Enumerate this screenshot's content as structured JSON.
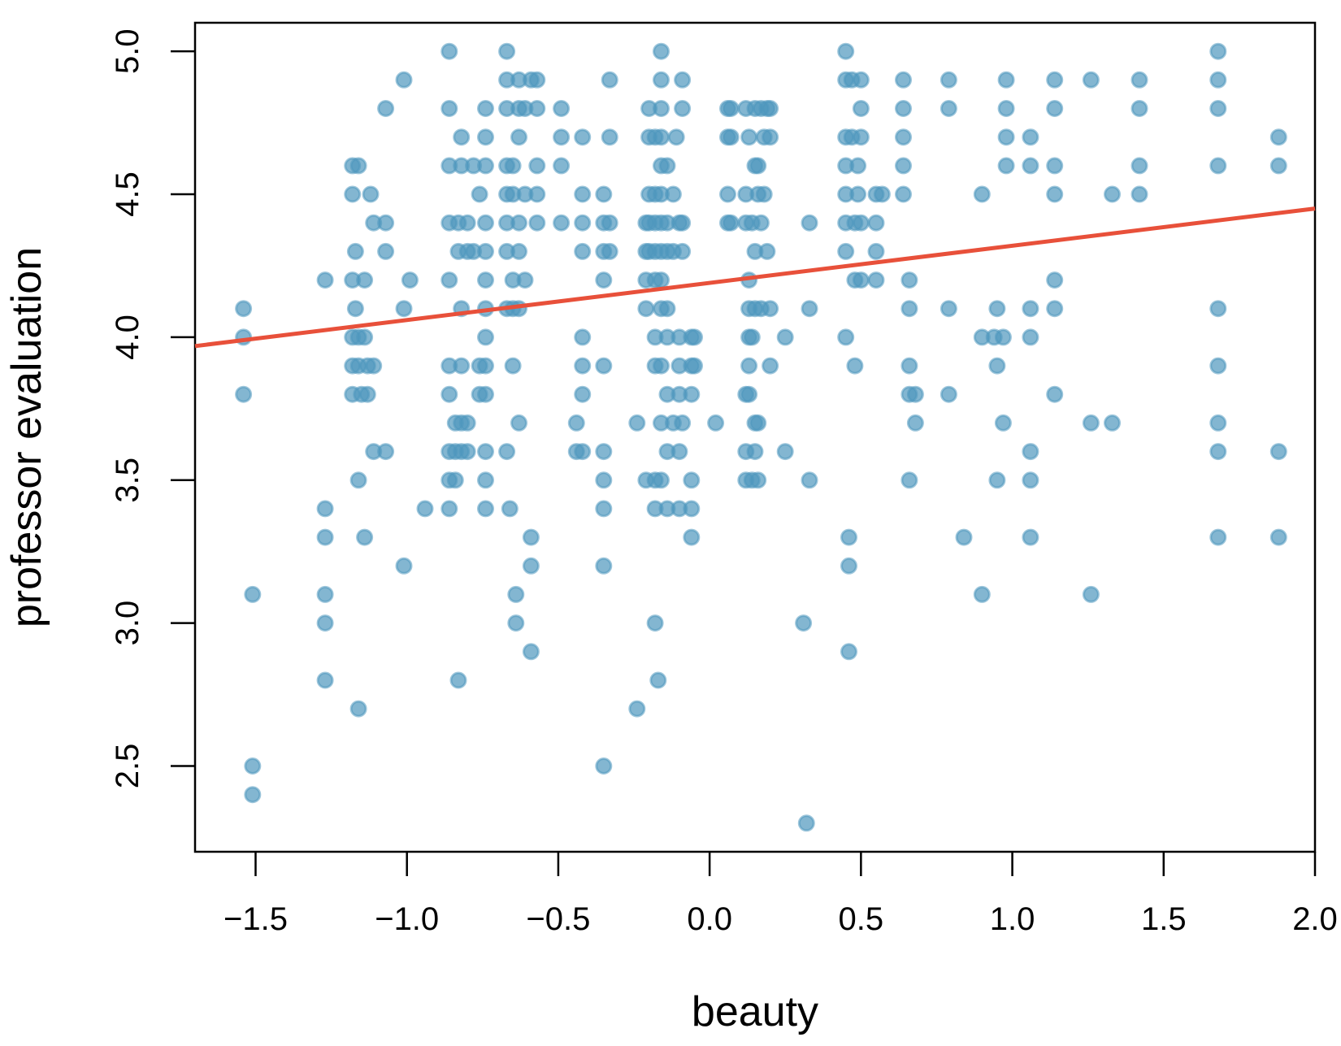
{
  "chart_data": {
    "type": "scatter",
    "title": "",
    "xlabel": "beauty",
    "ylabel": "professor evaluation",
    "xlim": [
      -1.7,
      2.0
    ],
    "ylim": [
      2.2,
      5.1
    ],
    "xticks": [
      "−1.5",
      "−1.0",
      "−0.5",
      "0.0",
      "0.5",
      "1.0",
      "1.5",
      "2.0"
    ],
    "xtick_values": [
      -1.5,
      -1.0,
      -0.5,
      0.0,
      0.5,
      1.0,
      1.5,
      2.0
    ],
    "yticks": [
      "2.5",
      "3.0",
      "3.5",
      "4.0",
      "4.5",
      "5.0"
    ],
    "ytick_values": [
      2.5,
      3.0,
      3.5,
      4.0,
      4.5,
      5.0
    ],
    "grid": false,
    "point_color": "#4f97bd",
    "line_color": "#e8503a",
    "regression_line": {
      "intercept": 4.19,
      "slope": 0.13
    },
    "points": [
      [
        -1.54,
        4.1
      ],
      [
        -1.54,
        4.0
      ],
      [
        -1.54,
        3.8
      ],
      [
        -1.51,
        3.1
      ],
      [
        -1.51,
        2.5
      ],
      [
        -1.51,
        2.4
      ],
      [
        -1.27,
        4.2
      ],
      [
        -1.27,
        3.4
      ],
      [
        -1.27,
        3.3
      ],
      [
        -1.27,
        3.1
      ],
      [
        -1.27,
        3.0
      ],
      [
        -1.27,
        2.8
      ],
      [
        -1.18,
        4.6
      ],
      [
        -1.16,
        4.6
      ],
      [
        -1.18,
        4.5
      ],
      [
        -1.17,
        4.3
      ],
      [
        -1.18,
        4.2
      ],
      [
        -1.17,
        4.1
      ],
      [
        -1.18,
        4.0
      ],
      [
        -1.16,
        4.0
      ],
      [
        -1.14,
        4.0
      ],
      [
        -1.18,
        3.9
      ],
      [
        -1.16,
        3.9
      ],
      [
        -1.13,
        3.9
      ],
      [
        -1.18,
        3.8
      ],
      [
        -1.15,
        3.8
      ],
      [
        -1.13,
        3.8
      ],
      [
        -1.16,
        3.5
      ],
      [
        -1.14,
        3.3
      ],
      [
        -1.16,
        2.7
      ],
      [
        -1.14,
        4.2
      ],
      [
        -1.12,
        4.5
      ],
      [
        -1.11,
        4.4
      ],
      [
        -1.07,
        4.4
      ],
      [
        -1.07,
        4.3
      ],
      [
        -1.11,
        3.9
      ],
      [
        -1.11,
        3.6
      ],
      [
        -1.07,
        3.6
      ],
      [
        -1.07,
        4.8
      ],
      [
        -1.01,
        4.9
      ],
      [
        -0.99,
        4.2
      ],
      [
        -1.01,
        4.1
      ],
      [
        -1.01,
        3.2
      ],
      [
        -0.94,
        3.4
      ],
      [
        -0.86,
        5.0
      ],
      [
        -0.86,
        4.8
      ],
      [
        -0.86,
        4.6
      ],
      [
        -0.86,
        4.4
      ],
      [
        -0.86,
        4.2
      ],
      [
        -0.86,
        3.9
      ],
      [
        -0.86,
        3.8
      ],
      [
        -0.86,
        3.6
      ],
      [
        -0.86,
        3.5
      ],
      [
        -0.86,
        3.4
      ],
      [
        -0.84,
        3.7
      ],
      [
        -0.84,
        3.5
      ],
      [
        -0.84,
        3.6
      ],
      [
        -0.83,
        4.3
      ],
      [
        -0.83,
        4.4
      ],
      [
        -0.82,
        4.7
      ],
      [
        -0.82,
        4.6
      ],
      [
        -0.82,
        4.1
      ],
      [
        -0.82,
        3.9
      ],
      [
        -0.82,
        3.7
      ],
      [
        -0.82,
        3.6
      ],
      [
        -0.83,
        2.8
      ],
      [
        -0.8,
        4.4
      ],
      [
        -0.8,
        4.3
      ],
      [
        -0.8,
        3.7
      ],
      [
        -0.8,
        3.6
      ],
      [
        -0.78,
        4.6
      ],
      [
        -0.78,
        4.3
      ],
      [
        -0.76,
        4.5
      ],
      [
        -0.76,
        3.9
      ],
      [
        -0.76,
        3.8
      ],
      [
        -0.74,
        4.8
      ],
      [
        -0.74,
        4.7
      ],
      [
        -0.74,
        4.6
      ],
      [
        -0.74,
        4.4
      ],
      [
        -0.74,
        4.3
      ],
      [
        -0.74,
        4.2
      ],
      [
        -0.74,
        4.1
      ],
      [
        -0.74,
        4.0
      ],
      [
        -0.74,
        3.9
      ],
      [
        -0.74,
        3.8
      ],
      [
        -0.74,
        3.6
      ],
      [
        -0.74,
        3.5
      ],
      [
        -0.74,
        3.4
      ],
      [
        -0.67,
        5.0
      ],
      [
        -0.67,
        4.9
      ],
      [
        -0.67,
        4.8
      ],
      [
        -0.67,
        4.6
      ],
      [
        -0.67,
        4.5
      ],
      [
        -0.67,
        4.4
      ],
      [
        -0.67,
        4.3
      ],
      [
        -0.67,
        4.1
      ],
      [
        -0.67,
        3.6
      ],
      [
        -0.66,
        3.4
      ],
      [
        -0.65,
        4.6
      ],
      [
        -0.65,
        4.5
      ],
      [
        -0.65,
        4.2
      ],
      [
        -0.65,
        4.1
      ],
      [
        -0.65,
        3.9
      ],
      [
        -0.64,
        3.1
      ],
      [
        -0.64,
        3.0
      ],
      [
        -0.63,
        4.9
      ],
      [
        -0.63,
        4.8
      ],
      [
        -0.63,
        4.7
      ],
      [
        -0.63,
        4.4
      ],
      [
        -0.63,
        4.3
      ],
      [
        -0.63,
        4.1
      ],
      [
        -0.63,
        3.7
      ],
      [
        -0.61,
        4.8
      ],
      [
        -0.61,
        4.5
      ],
      [
        -0.61,
        4.2
      ],
      [
        -0.59,
        4.9
      ],
      [
        -0.59,
        3.3
      ],
      [
        -0.59,
        3.2
      ],
      [
        -0.59,
        2.9
      ],
      [
        -0.57,
        4.9
      ],
      [
        -0.57,
        4.8
      ],
      [
        -0.57,
        4.6
      ],
      [
        -0.57,
        4.5
      ],
      [
        -0.57,
        4.4
      ],
      [
        -0.49,
        4.8
      ],
      [
        -0.49,
        4.7
      ],
      [
        -0.49,
        4.6
      ],
      [
        -0.49,
        4.4
      ],
      [
        -0.42,
        4.7
      ],
      [
        -0.42,
        4.5
      ],
      [
        -0.42,
        4.4
      ],
      [
        -0.42,
        4.3
      ],
      [
        -0.42,
        4.0
      ],
      [
        -0.42,
        3.9
      ],
      [
        -0.42,
        3.8
      ],
      [
        -0.42,
        3.6
      ],
      [
        -0.44,
        3.7
      ],
      [
        -0.44,
        3.6
      ],
      [
        -0.35,
        4.5
      ],
      [
        -0.35,
        4.4
      ],
      [
        -0.35,
        4.3
      ],
      [
        -0.35,
        4.2
      ],
      [
        -0.35,
        3.9
      ],
      [
        -0.35,
        3.6
      ],
      [
        -0.35,
        3.5
      ],
      [
        -0.35,
        3.4
      ],
      [
        -0.35,
        3.2
      ],
      [
        -0.35,
        2.5
      ],
      [
        -0.33,
        4.9
      ],
      [
        -0.33,
        4.7
      ],
      [
        -0.33,
        4.4
      ],
      [
        -0.33,
        4.3
      ],
      [
        -0.24,
        3.7
      ],
      [
        -0.24,
        2.7
      ],
      [
        -0.21,
        4.4
      ],
      [
        -0.21,
        4.3
      ],
      [
        -0.21,
        4.2
      ],
      [
        -0.21,
        4.1
      ],
      [
        -0.21,
        3.5
      ],
      [
        -0.2,
        4.8
      ],
      [
        -0.2,
        4.7
      ],
      [
        -0.2,
        4.5
      ],
      [
        -0.2,
        4.4
      ],
      [
        -0.2,
        4.3
      ],
      [
        -0.18,
        4.7
      ],
      [
        -0.18,
        4.5
      ],
      [
        -0.18,
        4.4
      ],
      [
        -0.18,
        4.3
      ],
      [
        -0.18,
        4.2
      ],
      [
        -0.18,
        4.0
      ],
      [
        -0.18,
        3.9
      ],
      [
        -0.18,
        3.5
      ],
      [
        -0.18,
        3.4
      ],
      [
        -0.18,
        3.0
      ],
      [
        -0.17,
        2.8
      ],
      [
        -0.16,
        5.0
      ],
      [
        -0.16,
        4.9
      ],
      [
        -0.16,
        4.8
      ],
      [
        -0.16,
        4.7
      ],
      [
        -0.16,
        4.6
      ],
      [
        -0.16,
        4.5
      ],
      [
        -0.16,
        4.4
      ],
      [
        -0.16,
        4.3
      ],
      [
        -0.16,
        4.2
      ],
      [
        -0.16,
        4.1
      ],
      [
        -0.16,
        3.9
      ],
      [
        -0.16,
        3.7
      ],
      [
        -0.16,
        3.5
      ],
      [
        -0.14,
        4.6
      ],
      [
        -0.14,
        4.4
      ],
      [
        -0.14,
        4.3
      ],
      [
        -0.14,
        4.1
      ],
      [
        -0.14,
        4.0
      ],
      [
        -0.14,
        3.8
      ],
      [
        -0.14,
        3.6
      ],
      [
        -0.14,
        3.4
      ],
      [
        -0.12,
        4.5
      ],
      [
        -0.12,
        4.3
      ],
      [
        -0.12,
        3.7
      ],
      [
        -0.11,
        4.7
      ],
      [
        -0.1,
        4.4
      ],
      [
        -0.1,
        4.0
      ],
      [
        -0.1,
        3.9
      ],
      [
        -0.1,
        3.8
      ],
      [
        -0.1,
        3.6
      ],
      [
        -0.1,
        3.4
      ],
      [
        -0.09,
        4.9
      ],
      [
        -0.09,
        4.8
      ],
      [
        -0.09,
        4.4
      ],
      [
        -0.09,
        4.3
      ],
      [
        -0.09,
        3.7
      ],
      [
        -0.06,
        4.0
      ],
      [
        -0.06,
        3.9
      ],
      [
        -0.06,
        3.8
      ],
      [
        -0.06,
        3.5
      ],
      [
        -0.06,
        3.4
      ],
      [
        -0.06,
        3.3
      ],
      [
        -0.05,
        4.0
      ],
      [
        -0.05,
        3.9
      ],
      [
        0.02,
        3.7
      ],
      [
        0.06,
        4.8
      ],
      [
        0.06,
        4.7
      ],
      [
        0.06,
        4.5
      ],
      [
        0.06,
        4.4
      ],
      [
        0.07,
        4.8
      ],
      [
        0.07,
        4.7
      ],
      [
        0.07,
        4.4
      ],
      [
        0.12,
        4.8
      ],
      [
        0.12,
        4.5
      ],
      [
        0.12,
        4.4
      ],
      [
        0.12,
        3.8
      ],
      [
        0.12,
        3.6
      ],
      [
        0.12,
        3.5
      ],
      [
        0.13,
        4.7
      ],
      [
        0.13,
        4.2
      ],
      [
        0.13,
        4.1
      ],
      [
        0.13,
        4.0
      ],
      [
        0.13,
        3.9
      ],
      [
        0.13,
        3.8
      ],
      [
        0.14,
        4.4
      ],
      [
        0.14,
        4.0
      ],
      [
        0.14,
        3.5
      ],
      [
        0.15,
        4.8
      ],
      [
        0.15,
        4.6
      ],
      [
        0.15,
        4.3
      ],
      [
        0.15,
        4.1
      ],
      [
        0.15,
        3.7
      ],
      [
        0.15,
        3.6
      ],
      [
        0.16,
        4.6
      ],
      [
        0.16,
        4.5
      ],
      [
        0.16,
        3.7
      ],
      [
        0.16,
        3.5
      ],
      [
        0.17,
        4.8
      ],
      [
        0.17,
        4.4
      ],
      [
        0.17,
        4.1
      ],
      [
        0.18,
        4.7
      ],
      [
        0.18,
        4.5
      ],
      [
        0.19,
        4.8
      ],
      [
        0.19,
        4.3
      ],
      [
        0.2,
        4.8
      ],
      [
        0.2,
        4.7
      ],
      [
        0.2,
        4.1
      ],
      [
        0.2,
        3.9
      ],
      [
        0.25,
        4.0
      ],
      [
        0.25,
        3.6
      ],
      [
        0.31,
        3.0
      ],
      [
        0.32,
        2.3
      ],
      [
        0.33,
        4.4
      ],
      [
        0.33,
        4.1
      ],
      [
        0.33,
        3.5
      ],
      [
        0.45,
        5.0
      ],
      [
        0.45,
        4.9
      ],
      [
        0.45,
        4.7
      ],
      [
        0.45,
        4.6
      ],
      [
        0.45,
        4.5
      ],
      [
        0.45,
        4.4
      ],
      [
        0.45,
        4.3
      ],
      [
        0.45,
        4.0
      ],
      [
        0.46,
        3.3
      ],
      [
        0.46,
        3.2
      ],
      [
        0.46,
        2.9
      ],
      [
        0.47,
        4.9
      ],
      [
        0.47,
        4.7
      ],
      [
        0.48,
        4.4
      ],
      [
        0.48,
        4.2
      ],
      [
        0.48,
        3.9
      ],
      [
        0.49,
        4.6
      ],
      [
        0.49,
        4.5
      ],
      [
        0.5,
        4.9
      ],
      [
        0.5,
        4.8
      ],
      [
        0.5,
        4.7
      ],
      [
        0.5,
        4.4
      ],
      [
        0.5,
        4.2
      ],
      [
        0.55,
        4.5
      ],
      [
        0.55,
        4.4
      ],
      [
        0.55,
        4.3
      ],
      [
        0.55,
        4.2
      ],
      [
        0.57,
        4.5
      ],
      [
        0.64,
        4.9
      ],
      [
        0.64,
        4.8
      ],
      [
        0.64,
        4.7
      ],
      [
        0.64,
        4.6
      ],
      [
        0.64,
        4.5
      ],
      [
        0.66,
        4.2
      ],
      [
        0.66,
        4.1
      ],
      [
        0.66,
        3.9
      ],
      [
        0.66,
        3.8
      ],
      [
        0.66,
        3.5
      ],
      [
        0.68,
        3.8
      ],
      [
        0.68,
        3.7
      ],
      [
        0.79,
        4.9
      ],
      [
        0.79,
        4.8
      ],
      [
        0.79,
        4.1
      ],
      [
        0.79,
        3.8
      ],
      [
        0.84,
        3.3
      ],
      [
        0.9,
        4.5
      ],
      [
        0.9,
        4.0
      ],
      [
        0.9,
        3.1
      ],
      [
        0.94,
        4.0
      ],
      [
        0.95,
        4.1
      ],
      [
        0.95,
        3.9
      ],
      [
        0.95,
        3.5
      ],
      [
        0.97,
        4.0
      ],
      [
        0.97,
        3.7
      ],
      [
        0.98,
        4.9
      ],
      [
        0.98,
        4.8
      ],
      [
        0.98,
        4.7
      ],
      [
        0.98,
        4.6
      ],
      [
        1.06,
        4.7
      ],
      [
        1.06,
        4.6
      ],
      [
        1.06,
        4.1
      ],
      [
        1.06,
        4.0
      ],
      [
        1.06,
        3.6
      ],
      [
        1.06,
        3.5
      ],
      [
        1.06,
        3.3
      ],
      [
        1.14,
        4.9
      ],
      [
        1.14,
        4.8
      ],
      [
        1.14,
        4.6
      ],
      [
        1.14,
        4.5
      ],
      [
        1.14,
        4.2
      ],
      [
        1.14,
        4.1
      ],
      [
        1.14,
        3.8
      ],
      [
        1.26,
        4.9
      ],
      [
        1.26,
        3.7
      ],
      [
        1.26,
        3.1
      ],
      [
        1.33,
        4.5
      ],
      [
        1.33,
        3.7
      ],
      [
        1.42,
        4.9
      ],
      [
        1.42,
        4.8
      ],
      [
        1.42,
        4.6
      ],
      [
        1.42,
        4.5
      ],
      [
        1.68,
        5.0
      ],
      [
        1.68,
        4.9
      ],
      [
        1.68,
        4.8
      ],
      [
        1.68,
        4.6
      ],
      [
        1.68,
        4.1
      ],
      [
        1.68,
        3.9
      ],
      [
        1.68,
        3.7
      ],
      [
        1.68,
        3.6
      ],
      [
        1.68,
        3.3
      ],
      [
        1.88,
        4.7
      ],
      [
        1.88,
        4.6
      ],
      [
        1.88,
        3.6
      ],
      [
        1.88,
        3.3
      ]
    ]
  }
}
